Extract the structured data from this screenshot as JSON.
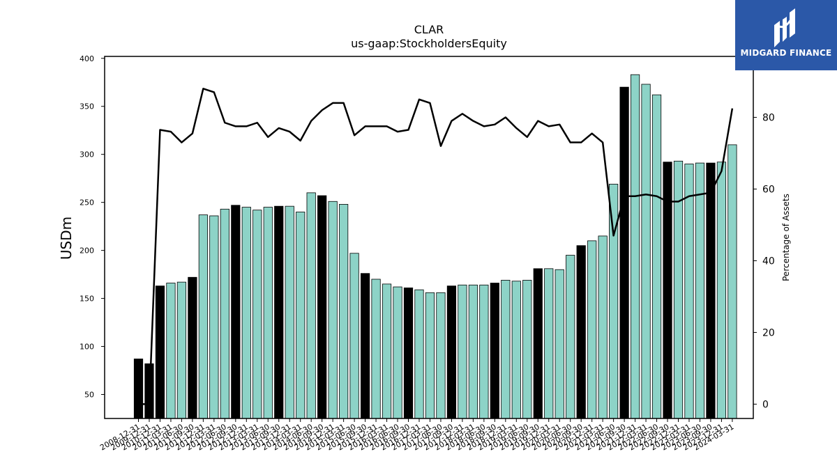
{
  "chart_data": {
    "type": "bar",
    "title": "CLAR",
    "subtitle": "us-gaap:StockholdersEquity",
    "ylabel": "USDm",
    "y2label": "Percentage of Assets",
    "ylim": [
      25,
      402
    ],
    "y2lim": [
      -4,
      97
    ],
    "yticks": [
      50,
      100,
      150,
      200,
      250,
      300,
      350,
      400
    ],
    "y2ticks": [
      0,
      20,
      40,
      60,
      80
    ],
    "colors": {
      "bar_highlight": "#000000",
      "bar_normal": "#8dd3c7",
      "line": "#000000"
    },
    "categories": [
      "2008-12-31",
      "2009-12-31",
      "2010-12-31",
      "2011-03-31",
      "2011-06-30",
      "2011-09-30",
      "2011-12-31",
      "2012-03-31",
      "2012-06-30",
      "2012-09-30",
      "2012-12-31",
      "2013-03-31",
      "2013-06-30",
      "2013-09-30",
      "2013-12-31",
      "2014-03-31",
      "2014-06-30",
      "2014-09-30",
      "2014-12-31",
      "2015-03-31",
      "2015-06-30",
      "2015-09-30",
      "2015-12-31",
      "2016-03-31",
      "2016-06-30",
      "2016-09-30",
      "2016-12-31",
      "2017-03-31",
      "2017-06-30",
      "2017-09-30",
      "2017-12-31",
      "2018-03-31",
      "2018-06-30",
      "2018-09-30",
      "2018-12-31",
      "2019-03-31",
      "2019-06-30",
      "2019-09-30",
      "2019-12-31",
      "2020-03-31",
      "2020-06-30",
      "2020-09-30",
      "2020-12-31",
      "2021-03-31",
      "2021-06-30",
      "2021-09-30",
      "2021-12-31",
      "2022-03-31",
      "2022-06-30",
      "2022-09-30",
      "2022-12-31",
      "2023-03-31",
      "2023-06-30",
      "2023-09-30",
      "2023-12-31",
      "2024-03-31"
    ],
    "values": [
      87,
      82,
      163,
      166,
      167,
      172,
      237,
      236,
      243,
      247,
      245,
      242,
      245,
      246,
      246,
      240,
      260,
      257,
      251,
      248,
      197,
      176,
      170,
      165,
      162,
      161,
      159,
      156,
      156,
      163,
      164,
      164,
      164,
      166,
      169,
      168,
      169,
      181,
      181,
      180,
      195,
      205,
      210,
      215,
      269,
      370,
      383,
      373,
      362,
      292,
      293,
      290,
      291,
      291,
      292,
      310
    ],
    "highlight": [
      true,
      true,
      true,
      false,
      false,
      true,
      false,
      false,
      false,
      true,
      false,
      false,
      false,
      true,
      false,
      false,
      false,
      true,
      false,
      false,
      false,
      true,
      false,
      false,
      false,
      true,
      false,
      false,
      false,
      true,
      false,
      false,
      false,
      true,
      false,
      false,
      false,
      true,
      false,
      false,
      false,
      true,
      false,
      false,
      false,
      true,
      false,
      false,
      false,
      true,
      false,
      false,
      false,
      true,
      false,
      false
    ],
    "series": [
      {
        "axis": "right",
        "values": [
          0,
          0,
          76.5,
          76,
          73,
          75.5,
          88,
          87,
          78.5,
          77.5,
          77.5,
          78.5,
          74.5,
          77,
          76,
          73.5,
          79,
          82,
          84,
          84,
          75,
          77.5,
          77.5,
          77.5,
          76,
          76.5,
          85,
          84,
          72,
          79,
          81,
          79,
          77.5,
          78,
          80,
          77,
          74.5,
          79,
          77.5,
          78,
          73,
          73,
          75.5,
          73,
          47,
          58,
          58,
          58.5,
          58,
          56.5,
          56.5,
          58,
          58.5,
          59,
          65,
          82.5
        ]
      }
    ]
  }
}
